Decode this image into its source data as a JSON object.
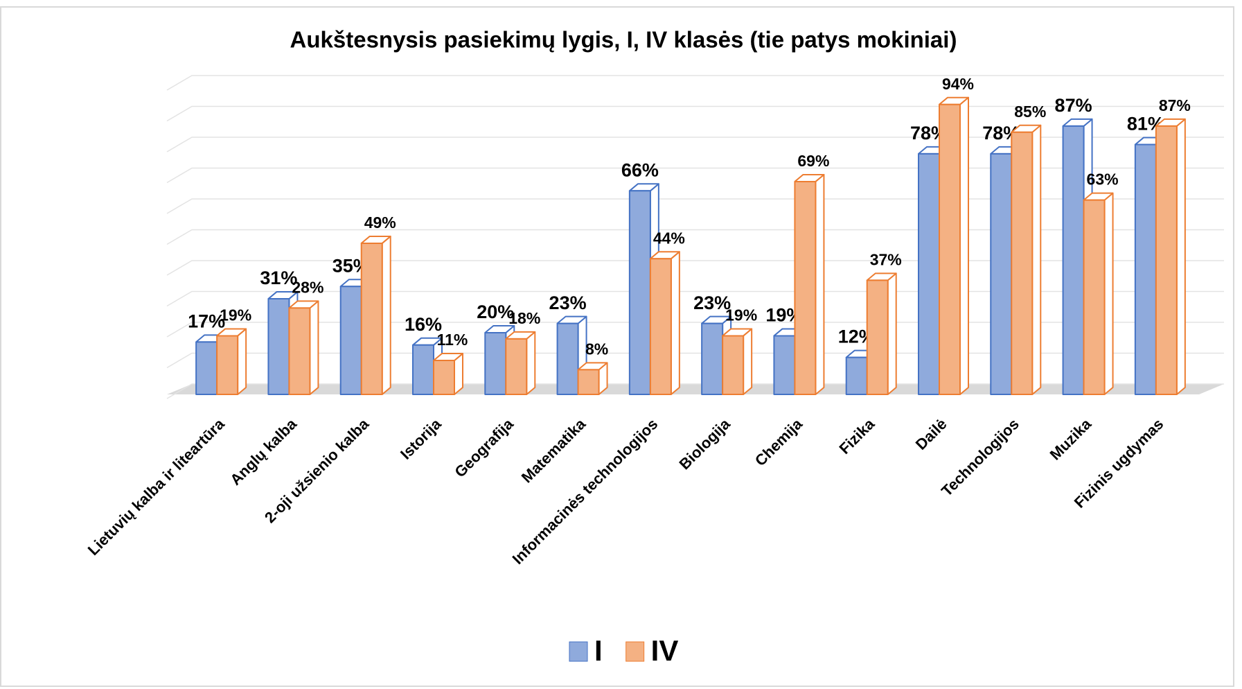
{
  "chart_data": {
    "type": "bar3d",
    "title": "Aukštesnysis pasiekimų lygis, I, IV klasės (tie patys mokiniai)",
    "categories": [
      "Lietuvių kalba ir liteartūra",
      "Anglų kalba",
      "2-oji užsienio kalba",
      "Istorija",
      "Geografija",
      "Matematika",
      "Informacinės technologijos",
      "Biologija",
      "Chemija",
      "Fizika",
      "Dailė",
      "Technologijos",
      "Muzika",
      "Fizinis ugdymas"
    ],
    "series": [
      {
        "name": "I",
        "color": "#8faadc",
        "edge": "#4472c4",
        "values": [
          17,
          31,
          35,
          16,
          20,
          23,
          66,
          23,
          19,
          12,
          78,
          78,
          87,
          81
        ],
        "value_labels": [
          "17%",
          "31%",
          "35%",
          "16%",
          "20%",
          "23%",
          "66%",
          "23%",
          "19%",
          "12%",
          "78%",
          "78%",
          "87%",
          "81%"
        ]
      },
      {
        "name": "IV",
        "color": "#f4b183",
        "edge": "#ed7d31",
        "values": [
          19,
          28,
          49,
          11,
          18,
          8,
          44,
          19,
          69,
          37,
          94,
          85,
          63,
          87
        ],
        "value_labels": [
          "19%",
          "28%",
          "49%",
          "11%",
          "18%",
          "8%",
          "44%",
          "19%",
          "69%",
          "37%",
          "94%",
          "85%",
          "63%",
          "87%"
        ]
      }
    ],
    "ylim": [
      0,
      100
    ],
    "yticks": [
      0,
      10,
      20,
      30,
      40,
      50,
      60,
      70,
      80,
      90,
      100
    ],
    "grid": true,
    "legend": "bottom"
  }
}
